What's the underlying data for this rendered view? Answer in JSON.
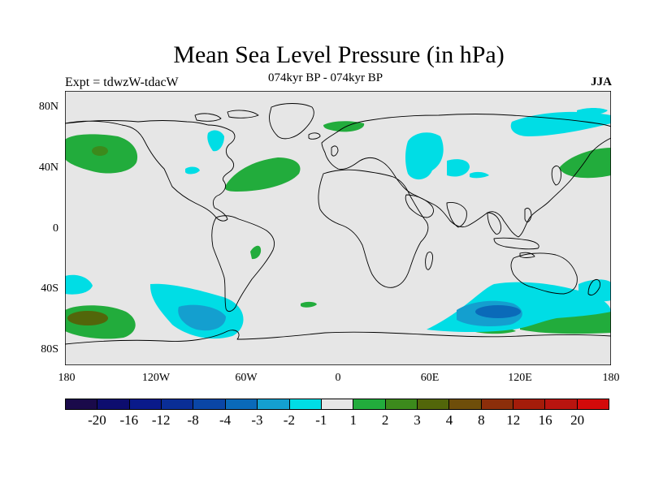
{
  "title": "Mean Sea Level Pressure (in hPa)",
  "left_subtitle": "Expt = tdwzW-tdacW",
  "center_subtitle": "074kyr BP - 074kyr BP",
  "right_subtitle": "JJA",
  "lat_labels": [
    "80N",
    "40N",
    "0",
    "40S",
    "80S"
  ],
  "lon_labels": [
    "180",
    "120W",
    "60W",
    "0",
    "60E",
    "120E",
    "180"
  ],
  "colorbar": {
    "labels": [
      "-20",
      "-16",
      "-12",
      "-8",
      "-4",
      "-3",
      "-2",
      "-1",
      "1",
      "2",
      "3",
      "4",
      "8",
      "12",
      "16",
      "20"
    ],
    "colors": [
      "#1a0a4a",
      "#0d0d6e",
      "#0a1a8a",
      "#0a2e96",
      "#0a46a6",
      "#0a6ab9",
      "#149fcf",
      "#00dde5",
      "#e6e6e6",
      "#22ac3c",
      "#3c8a1c",
      "#52660a",
      "#6e4e0a",
      "#8c2e0a",
      "#a41c0a",
      "#b8140f",
      "#d40a0a"
    ]
  },
  "colors": {
    "background": "#e6e6e6",
    "coast": "#000000",
    "cyan": "#00dde5",
    "mid_blue": "#149fcf",
    "deep_blue": "#0a6ab9",
    "green": "#22ac3c",
    "dark_green": "#3c8a1c",
    "olive": "#52660a"
  }
}
